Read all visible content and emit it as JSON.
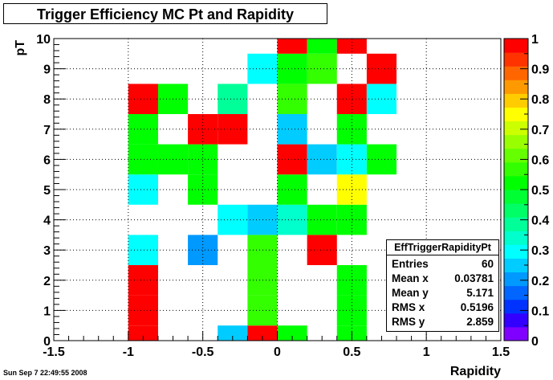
{
  "page": {
    "datestamp": "Sun Sep  7 22:49:55 2008"
  },
  "chart_data": {
    "type": "heatmap",
    "title": "Trigger Efficiency MC Pt and Rapidity",
    "xlabel": "Rapidity",
    "ylabel": "pT",
    "xlim": [
      -1.5,
      1.5
    ],
    "ylim": [
      0,
      10
    ],
    "zlim": [
      0,
      1
    ],
    "x_ticks": [
      "-1.5",
      "-1",
      "-0.5",
      "0",
      "0.5",
      "1",
      "1.5"
    ],
    "y_ticks": [
      "0",
      "1",
      "2",
      "3",
      "4",
      "5",
      "6",
      "7",
      "8",
      "9",
      "10"
    ],
    "z_ticks": [
      "0",
      "0.1",
      "0.2",
      "0.3",
      "0.4",
      "0.5",
      "0.6",
      "0.7",
      "0.8",
      "0.9",
      "1"
    ],
    "grid": true,
    "bin_width_x": 0.2,
    "bin_height_y": 1,
    "cells": [
      {
        "x": -0.9,
        "y": 0,
        "v": 1.0
      },
      {
        "x": -0.3,
        "y": 0,
        "v": 0.25
      },
      {
        "x": -0.1,
        "y": 0,
        "v": 1.0
      },
      {
        "x": 0.1,
        "y": 0,
        "v": 0.5
      },
      {
        "x": 0.5,
        "y": 0,
        "v": 0.5
      },
      {
        "x": -0.9,
        "y": 1,
        "v": 1.0
      },
      {
        "x": -0.1,
        "y": 1,
        "v": 0.55
      },
      {
        "x": 0.5,
        "y": 1,
        "v": 0.5
      },
      {
        "x": -0.9,
        "y": 2,
        "v": 1.0
      },
      {
        "x": -0.1,
        "y": 2,
        "v": 0.55
      },
      {
        "x": 0.5,
        "y": 2,
        "v": 0.5
      },
      {
        "x": -0.9,
        "y": 3,
        "v": 0.3
      },
      {
        "x": -0.5,
        "y": 3,
        "v": 0.2
      },
      {
        "x": -0.1,
        "y": 3,
        "v": 0.55
      },
      {
        "x": 0.3,
        "y": 3,
        "v": 1.0
      },
      {
        "x": -0.3,
        "y": 4,
        "v": 0.3
      },
      {
        "x": -0.1,
        "y": 4,
        "v": 0.25
      },
      {
        "x": 0.1,
        "y": 4,
        "v": 0.35
      },
      {
        "x": 0.3,
        "y": 4,
        "v": 0.5
      },
      {
        "x": 0.5,
        "y": 4,
        "v": 0.5
      },
      {
        "x": -0.9,
        "y": 5,
        "v": 0.3
      },
      {
        "x": -0.5,
        "y": 5,
        "v": 0.5
      },
      {
        "x": 0.1,
        "y": 5,
        "v": 0.5
      },
      {
        "x": 0.5,
        "y": 5,
        "v": 0.75
      },
      {
        "x": -0.9,
        "y": 6,
        "v": 0.5
      },
      {
        "x": -0.7,
        "y": 6,
        "v": 0.5
      },
      {
        "x": -0.5,
        "y": 6,
        "v": 0.5
      },
      {
        "x": 0.1,
        "y": 6,
        "v": 1.0
      },
      {
        "x": 0.3,
        "y": 6,
        "v": 0.25
      },
      {
        "x": 0.5,
        "y": 6,
        "v": 0.3
      },
      {
        "x": 0.7,
        "y": 6,
        "v": 0.5
      },
      {
        "x": -0.9,
        "y": 7,
        "v": 0.5
      },
      {
        "x": -0.5,
        "y": 7,
        "v": 1.0
      },
      {
        "x": -0.3,
        "y": 7,
        "v": 1.0
      },
      {
        "x": 0.1,
        "y": 7,
        "v": 0.25
      },
      {
        "x": 0.5,
        "y": 7,
        "v": 0.5
      },
      {
        "x": -0.9,
        "y": 8,
        "v": 1.0
      },
      {
        "x": -0.7,
        "y": 8,
        "v": 0.5
      },
      {
        "x": -0.3,
        "y": 8,
        "v": 0.4
      },
      {
        "x": 0.1,
        "y": 8,
        "v": 0.55
      },
      {
        "x": 0.5,
        "y": 8,
        "v": 1.0
      },
      {
        "x": 0.7,
        "y": 8,
        "v": 0.3
      },
      {
        "x": -0.1,
        "y": 9,
        "v": 0.3
      },
      {
        "x": 0.1,
        "y": 9,
        "v": 0.5
      },
      {
        "x": 0.3,
        "y": 9,
        "v": 0.55
      },
      {
        "x": 0.7,
        "y": 9,
        "v": 1.0
      },
      {
        "x": 0.1,
        "y": 10,
        "v": 1.0
      },
      {
        "x": 0.3,
        "y": 10,
        "v": 0.5
      },
      {
        "x": 0.5,
        "y": 10,
        "v": 1.0
      }
    ],
    "palette": [
      "#8000ff",
      "#3300ff",
      "#0033ff",
      "#0066ff",
      "#0099ff",
      "#00ccff",
      "#00ffff",
      "#00ffcc",
      "#00ff99",
      "#00ff66",
      "#00ff33",
      "#00ff00",
      "#33ff00",
      "#66ff00",
      "#99ff00",
      "#ccff00",
      "#ffff00",
      "#ffcc00",
      "#ff9900",
      "#ff6600",
      "#ff3300",
      "#ff0000"
    ],
    "stats": {
      "name": "EffTriggerRapidityPt",
      "rows": [
        {
          "label": "Entries",
          "value": "60"
        },
        {
          "label": "Mean x",
          "value": "0.03781"
        },
        {
          "label": "Mean y",
          "value": "5.171"
        },
        {
          "label": "RMS x",
          "value": "0.5196"
        },
        {
          "label": "RMS y",
          "value": "2.859"
        }
      ]
    }
  }
}
